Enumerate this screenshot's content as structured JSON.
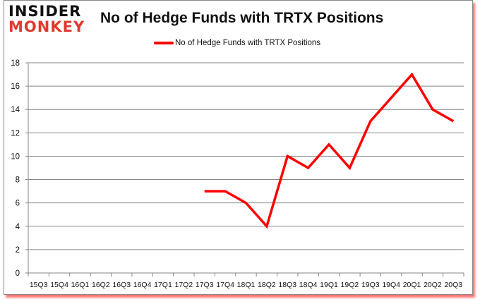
{
  "logo": {
    "line1": "INSIDER",
    "line2": "MONKEY"
  },
  "chart_data": {
    "type": "line",
    "title": "No of Hedge Funds with TRTX Positions",
    "xlabel": "",
    "ylabel": "",
    "ylim": [
      0,
      18
    ],
    "yticks": [
      0,
      2,
      4,
      6,
      8,
      10,
      12,
      14,
      16,
      18
    ],
    "grid": true,
    "legend_position": "top",
    "categories": [
      "15Q3",
      "15Q4",
      "16Q1",
      "16Q2",
      "16Q3",
      "16Q4",
      "17Q1",
      "17Q2",
      "17Q3",
      "17Q4",
      "18Q1",
      "18Q2",
      "18Q3",
      "18Q4",
      "19Q1",
      "19Q2",
      "19Q3",
      "19Q4",
      "20Q1",
      "20Q2",
      "20Q3"
    ],
    "series": [
      {
        "name": "No of Hedge Funds with TRTX Positions",
        "color": "#ff0000",
        "values": [
          null,
          null,
          null,
          null,
          null,
          null,
          null,
          null,
          7,
          7,
          6,
          4,
          10,
          9,
          11,
          9,
          13,
          15,
          17,
          14,
          13
        ]
      }
    ]
  }
}
